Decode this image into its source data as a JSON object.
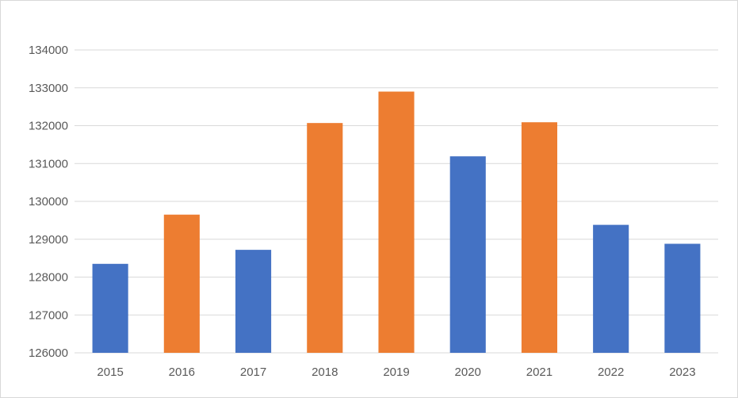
{
  "chart_data": {
    "type": "bar",
    "title": "",
    "xlabel": "",
    "ylabel": "",
    "categories": [
      "2015",
      "2016",
      "2017",
      "2018",
      "2019",
      "2020",
      "2021",
      "2022",
      "2023"
    ],
    "values": [
      128350,
      129650,
      128720,
      132070,
      132900,
      131190,
      132090,
      129380,
      128880
    ],
    "bar_colors": [
      "#4472C4",
      "#ED7D31",
      "#4472C4",
      "#ED7D31",
      "#ED7D31",
      "#4472C4",
      "#ED7D31",
      "#4472C4",
      "#4472C4"
    ],
    "ylim": [
      126000,
      134000
    ],
    "yticks": [
      "126000",
      "127000",
      "128000",
      "129000",
      "130000",
      "131000",
      "132000",
      "133000",
      "134000"
    ],
    "grid": true,
    "legend": "none",
    "colors": {
      "blue": "#4472C4",
      "orange": "#ED7D31",
      "gridline": "#d9d9d9",
      "text": "#595959"
    }
  }
}
